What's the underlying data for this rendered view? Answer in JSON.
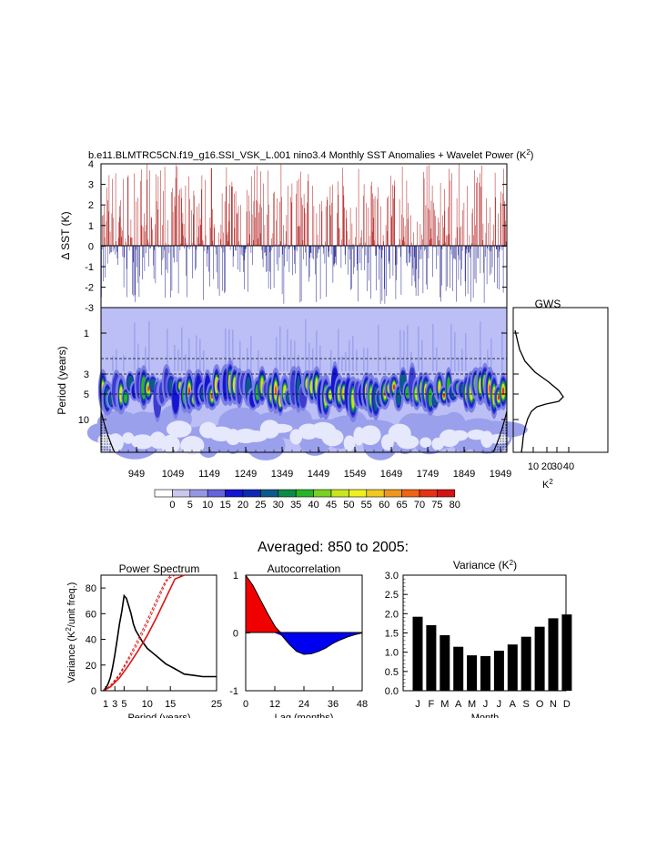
{
  "title": "b.e11.BLMTRC5CN.f19_g16.SSI_VSK_L.001 nino3.4 Monthly SST Anomalies + Wavelet Power (K",
  "title_sup": "2",
  "title_end": ")",
  "sst_panel": {
    "ylabel": "Δ SST (K)",
    "yticks": [
      "4",
      "3",
      "2",
      "1",
      "0",
      "-1",
      "-2",
      "-3"
    ]
  },
  "wavelet_panel": {
    "ylabel": "Period (years)",
    "yticks": [
      "1",
      "3",
      "5",
      "10"
    ],
    "xticks": [
      "949",
      "1049",
      "1149",
      "1249",
      "1349",
      "1449",
      "1549",
      "1649",
      "1749",
      "1849",
      "1949"
    ]
  },
  "gws_panel": {
    "title": "GWS",
    "xticks": [
      "10",
      "20",
      "30",
      "40"
    ],
    "xlabel": "K",
    "xlabel_sup": "2"
  },
  "colorbar": {
    "labels": [
      "0",
      "5",
      "10",
      "15",
      "20",
      "25",
      "30",
      "35",
      "40",
      "45",
      "50",
      "55",
      "60",
      "65",
      "70",
      "75",
      "80"
    ],
    "colors": [
      "#ffffff",
      "#c8c8f0",
      "#9696e6",
      "#6464dc",
      "#1414d2",
      "#0a2ab4",
      "#0a5a8c",
      "#0a8c46",
      "#28b428",
      "#78d21e",
      "#c8e61e",
      "#f0f01e",
      "#f0c81e",
      "#f0961e",
      "#f06414",
      "#e63214",
      "#d21414"
    ]
  },
  "averaged_title": "Averaged: 850 to 2005:",
  "power_spectrum": {
    "title": "Power Spectrum",
    "ylabel": "Variance (K",
    "ylabel_sup": "2",
    "ylabel_end": "/unit freq.)",
    "xlabel": "Period (years)",
    "xticks": [
      "1",
      "3",
      "5",
      "10",
      "15",
      "25"
    ],
    "yticks": [
      "0",
      "20",
      "40",
      "60",
      "80"
    ]
  },
  "autocorrelation": {
    "title": "Autocorrelation",
    "xlabel": "Lag (months)",
    "xticks": [
      "0",
      "12",
      "24",
      "36",
      "48"
    ],
    "yticks": [
      "1",
      "0",
      "-1"
    ]
  },
  "variance": {
    "title": "Variance (K",
    "title_sup": "2",
    "title_end": ")",
    "xlabel": "Month",
    "yticks": [
      "3.0",
      "2.5",
      "2.0",
      "1.5",
      "1.0",
      "0.5",
      "0.0"
    ]
  },
  "chart_data": [
    {
      "type": "bar",
      "title": "Variance (K2)",
      "xlabel": "Month",
      "ylabel": "",
      "categories": [
        "J",
        "F",
        "M",
        "A",
        "M",
        "J",
        "J",
        "A",
        "S",
        "O",
        "N",
        "D"
      ],
      "values": [
        1.92,
        1.7,
        1.44,
        1.14,
        0.92,
        0.9,
        1.04,
        1.2,
        1.4,
        1.66,
        1.88,
        1.98
      ],
      "ylim": [
        0,
        3.0
      ]
    },
    {
      "type": "area",
      "title": "Autocorrelation",
      "xlabel": "Lag (months)",
      "x": [
        0,
        3,
        6,
        9,
        12,
        15,
        18,
        21,
        24,
        27,
        30,
        33,
        36,
        39,
        42,
        45,
        48
      ],
      "y": [
        1.0,
        0.82,
        0.58,
        0.34,
        0.12,
        -0.05,
        -0.2,
        -0.32,
        -0.37,
        -0.36,
        -0.32,
        -0.26,
        -0.18,
        -0.12,
        -0.07,
        -0.03,
        0.0
      ],
      "xlim": [
        0,
        48
      ],
      "ylim": [
        -1,
        1
      ]
    },
    {
      "type": "line",
      "title": "Power Spectrum",
      "xlabel": "Period (years)",
      "ylabel": "Variance (K2/unit freq.)",
      "xlim": [
        0,
        25
      ],
      "ylim": [
        0,
        90
      ],
      "series": [
        {
          "x": [
            0.5,
            1,
            1.5,
            2,
            2.5,
            3,
            3.5,
            4,
            4.5,
            5,
            5.5,
            6,
            6.5,
            7,
            7.5,
            8,
            9,
            10,
            11,
            12,
            13,
            14,
            15,
            16,
            17,
            18,
            20,
            22,
            25
          ],
          "y": [
            0,
            2,
            5,
            10,
            18,
            28,
            40,
            52,
            62,
            74,
            72,
            66,
            60,
            52,
            47,
            44,
            38,
            33,
            30,
            27,
            24,
            21,
            19,
            17,
            15,
            13,
            12,
            11,
            11
          ]
        },
        {
          "x": [
            0.5,
            2,
            4,
            6,
            8,
            10,
            12,
            14,
            16,
            18
          ],
          "y": [
            0,
            3,
            10,
            20,
            31,
            43,
            57,
            72,
            87,
            90
          ]
        },
        {
          "x": [
            0.5,
            2,
            4,
            6,
            8,
            10,
            12,
            14,
            15
          ],
          "y": [
            0,
            3,
            12,
            24,
            37,
            52,
            68,
            84,
            90
          ]
        },
        {
          "x": [
            0.5,
            2,
            4,
            6,
            8,
            10,
            12,
            14,
            16
          ],
          "y": [
            0,
            4,
            13,
            26,
            40,
            55,
            71,
            86,
            90
          ]
        }
      ]
    }
  ]
}
